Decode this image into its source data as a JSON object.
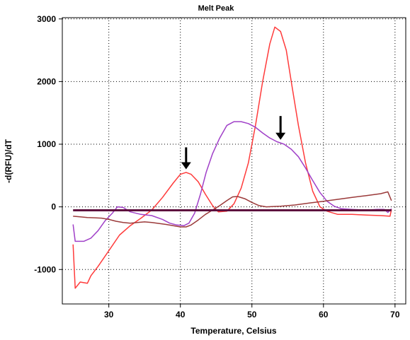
{
  "chart_data": {
    "type": "line",
    "title": "Melt Peak",
    "xlabel": "Temperature, Celsius",
    "ylabel": "-d(RFU)/dT",
    "xlim": [
      23.5,
      71.5
    ],
    "ylim": [
      -1550,
      3020
    ],
    "xticks": [
      30,
      40,
      50,
      60,
      70
    ],
    "yticks": [
      -1000,
      0,
      1000,
      2000,
      3000
    ],
    "grid": true,
    "series": [
      {
        "color": "#ff3b3b",
        "points": [
          [
            25,
            -600
          ],
          [
            25.3,
            -1300
          ],
          [
            26,
            -1200
          ],
          [
            27,
            -1220
          ],
          [
            27.5,
            -1100
          ],
          [
            28.5,
            -950
          ],
          [
            30,
            -700
          ],
          [
            31.5,
            -450
          ],
          [
            33,
            -300
          ],
          [
            34.5,
            -180
          ],
          [
            36,
            -50
          ],
          [
            37.5,
            150
          ],
          [
            39,
            380
          ],
          [
            40,
            520
          ],
          [
            40.8,
            550
          ],
          [
            41.5,
            520
          ],
          [
            42.5,
            400
          ],
          [
            43.5,
            200
          ],
          [
            44.5,
            20
          ],
          [
            45.3,
            -80
          ],
          [
            46.5,
            -70
          ],
          [
            47.5,
            50
          ],
          [
            48.5,
            300
          ],
          [
            49.5,
            700
          ],
          [
            50.5,
            1300
          ],
          [
            51.5,
            2000
          ],
          [
            52.5,
            2600
          ],
          [
            53.2,
            2870
          ],
          [
            54,
            2800
          ],
          [
            54.8,
            2500
          ],
          [
            55.5,
            2000
          ],
          [
            56.5,
            1300
          ],
          [
            57.5,
            700
          ],
          [
            58.5,
            250
          ],
          [
            59.5,
            0
          ],
          [
            60.5,
            -70
          ],
          [
            62,
            -120
          ],
          [
            64,
            -120
          ],
          [
            66,
            -130
          ],
          [
            68,
            -140
          ],
          [
            69.3,
            -150
          ],
          [
            69.5,
            -40
          ]
        ]
      },
      {
        "color": "#a040c8",
        "points": [
          [
            25,
            -280
          ],
          [
            25.3,
            -550
          ],
          [
            26.5,
            -550
          ],
          [
            27.5,
            -500
          ],
          [
            28.5,
            -380
          ],
          [
            29.5,
            -220
          ],
          [
            30.5,
            -100
          ],
          [
            31.2,
            0
          ],
          [
            32,
            -10
          ],
          [
            33,
            -80
          ],
          [
            34.5,
            -120
          ],
          [
            36,
            -140
          ],
          [
            37.5,
            -200
          ],
          [
            38.5,
            -260
          ],
          [
            39.5,
            -290
          ],
          [
            40.5,
            -300
          ],
          [
            41.2,
            -260
          ],
          [
            42,
            -100
          ],
          [
            42.8,
            200
          ],
          [
            43.6,
            550
          ],
          [
            44.5,
            850
          ],
          [
            45.5,
            1100
          ],
          [
            46.5,
            1300
          ],
          [
            47.5,
            1360
          ],
          [
            48.5,
            1360
          ],
          [
            49.5,
            1330
          ],
          [
            50.5,
            1270
          ],
          [
            51.5,
            1180
          ],
          [
            52.5,
            1100
          ],
          [
            53.5,
            1040
          ],
          [
            54.5,
            1000
          ],
          [
            55.5,
            920
          ],
          [
            56.5,
            800
          ],
          [
            57.5,
            620
          ],
          [
            58.5,
            420
          ],
          [
            59.5,
            230
          ],
          [
            60.5,
            90
          ],
          [
            61.5,
            10
          ],
          [
            62.5,
            -30
          ],
          [
            64,
            -40
          ],
          [
            66,
            -50
          ],
          [
            67.5,
            -40
          ],
          [
            68.5,
            -40
          ],
          [
            69,
            -90
          ],
          [
            69.5,
            -30
          ]
        ]
      },
      {
        "color": "#9b3a3a",
        "points": [
          [
            25,
            -150
          ],
          [
            26,
            -160
          ],
          [
            27,
            -170
          ],
          [
            28,
            -175
          ],
          [
            29,
            -180
          ],
          [
            30,
            -200
          ],
          [
            31,
            -230
          ],
          [
            32,
            -250
          ],
          [
            33,
            -260
          ],
          [
            34,
            -250
          ],
          [
            35,
            -240
          ],
          [
            36,
            -250
          ],
          [
            37,
            -265
          ],
          [
            38,
            -280
          ],
          [
            39,
            -300
          ],
          [
            40,
            -320
          ],
          [
            40.8,
            -320
          ],
          [
            41.5,
            -290
          ],
          [
            42.5,
            -210
          ],
          [
            43.5,
            -120
          ],
          [
            44.5,
            -50
          ],
          [
            45.5,
            20
          ],
          [
            46.5,
            100
          ],
          [
            47.3,
            160
          ],
          [
            48,
            165
          ],
          [
            49,
            130
          ],
          [
            50,
            70
          ],
          [
            51,
            20
          ],
          [
            52,
            0
          ],
          [
            54,
            10
          ],
          [
            56,
            30
          ],
          [
            58,
            60
          ],
          [
            60,
            90
          ],
          [
            62,
            120
          ],
          [
            64,
            150
          ],
          [
            66,
            180
          ],
          [
            68,
            210
          ],
          [
            69,
            240
          ],
          [
            69.5,
            100
          ]
        ]
      },
      {
        "color": "#5e0f3e",
        "points": [
          [
            25,
            -55
          ],
          [
            30,
            -55
          ],
          [
            35,
            -55
          ],
          [
            40,
            -55
          ],
          [
            45,
            -55
          ],
          [
            50,
            -55
          ],
          [
            55,
            -55
          ],
          [
            60,
            -55
          ],
          [
            65,
            -55
          ],
          [
            69.5,
            -55
          ]
        ]
      }
    ],
    "annotations": [
      {
        "type": "arrow",
        "x": 40.8,
        "y_tail": 950,
        "y_head": 600
      },
      {
        "type": "arrow",
        "x": 54.0,
        "y_tail": 1450,
        "y_head": 1070
      }
    ]
  }
}
